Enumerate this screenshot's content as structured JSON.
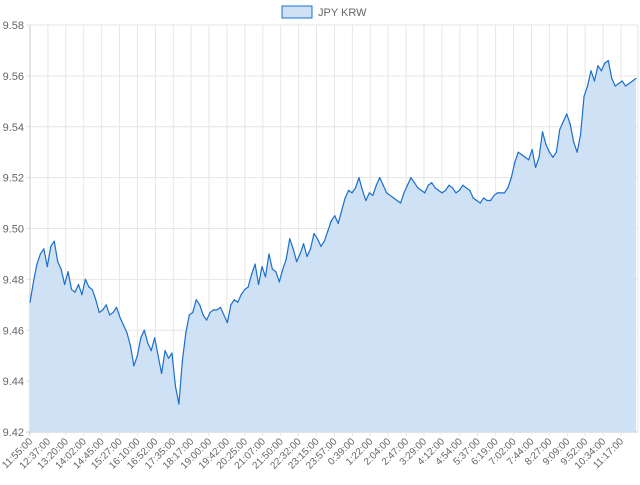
{
  "chart_data": {
    "type": "area",
    "legend": {
      "label": "JPY KRW",
      "placement": "top-center",
      "fill_color": "#cfe1f5",
      "stroke_color": "#1b6fcb"
    },
    "series": [
      {
        "name": "JPY KRW",
        "color": "#1b6fcb",
        "fill": "#cfe1f5",
        "values": [
          9.471,
          9.479,
          9.486,
          9.49,
          9.492,
          9.485,
          9.493,
          9.495,
          9.487,
          9.484,
          9.478,
          9.483,
          9.476,
          9.475,
          9.478,
          9.474,
          9.48,
          9.477,
          9.476,
          9.472,
          9.467,
          9.468,
          9.47,
          9.466,
          9.467,
          9.469,
          9.465,
          9.462,
          9.459,
          9.454,
          9.446,
          9.45,
          9.457,
          9.46,
          9.455,
          9.452,
          9.457,
          9.45,
          9.443,
          9.452,
          9.449,
          9.451,
          9.438,
          9.431,
          9.448,
          9.459,
          9.466,
          9.467,
          9.472,
          9.47,
          9.466,
          9.464,
          9.467,
          9.468,
          9.468,
          9.469,
          9.466,
          9.463,
          9.47,
          9.472,
          9.471,
          9.474,
          9.476,
          9.477,
          9.482,
          9.486,
          9.478,
          9.485,
          9.481,
          9.49,
          9.484,
          9.483,
          9.479,
          9.484,
          9.488,
          9.496,
          9.492,
          9.487,
          9.49,
          9.494,
          9.489,
          9.492,
          9.498,
          9.496,
          9.493,
          9.495,
          9.499,
          9.503,
          9.505,
          9.502,
          9.507,
          9.512,
          9.515,
          9.514,
          9.516,
          9.52,
          9.515,
          9.511,
          9.514,
          9.513,
          9.517,
          9.52,
          9.517,
          9.514,
          9.513,
          9.512,
          9.511,
          9.51,
          9.514,
          9.517,
          9.52,
          9.518,
          9.516,
          9.515,
          9.514,
          9.517,
          9.518,
          9.516,
          9.515,
          9.514,
          9.515,
          9.517,
          9.516,
          9.514,
          9.515,
          9.517,
          9.516,
          9.515,
          9.512,
          9.511,
          9.51,
          9.512,
          9.511,
          9.511,
          9.513,
          9.514,
          9.514,
          9.514,
          9.516,
          9.52,
          9.526,
          9.53,
          9.529,
          9.528,
          9.527,
          9.531,
          9.524,
          9.528,
          9.538,
          9.533,
          9.53,
          9.528,
          9.53,
          9.539,
          9.542,
          9.545,
          9.541,
          9.534,
          9.53,
          9.537,
          9.552,
          9.556,
          9.562,
          9.558,
          9.564,
          9.562,
          9.565,
          9.566,
          9.559,
          9.556,
          9.557,
          9.558,
          9.556,
          9.557,
          9.558,
          9.559
        ]
      }
    ],
    "x_tick_labels": [
      "11:55:00",
      "12:37:00",
      "13:20:00",
      "14:02:00",
      "14:45:00",
      "15:27:00",
      "16:10:00",
      "16:52:00",
      "17:35:00",
      "18:17:00",
      "19:00:00",
      "19:42:00",
      "20:25:00",
      "21:07:00",
      "21:50:00",
      "22:32:00",
      "23:15:00",
      "23:57:00",
      "0:39:00",
      "1:22:00",
      "2:04:00",
      "2:47:00",
      "3:29:00",
      "4:12:00",
      "4:54:00",
      "5:37:00",
      "6:19:00",
      "7:02:00",
      "7:44:00",
      "8:27:00",
      "9:09:00",
      "9:52:00",
      "10:34:00",
      "11:17:00"
    ],
    "y_ticks": [
      "9.42",
      "9.44",
      "9.46",
      "9.48",
      "9.50",
      "9.52",
      "9.54",
      "9.56",
      "9.58"
    ],
    "ylim": [
      9.42,
      9.58
    ],
    "grid": true,
    "title": "",
    "xlabel": "",
    "ylabel": ""
  }
}
